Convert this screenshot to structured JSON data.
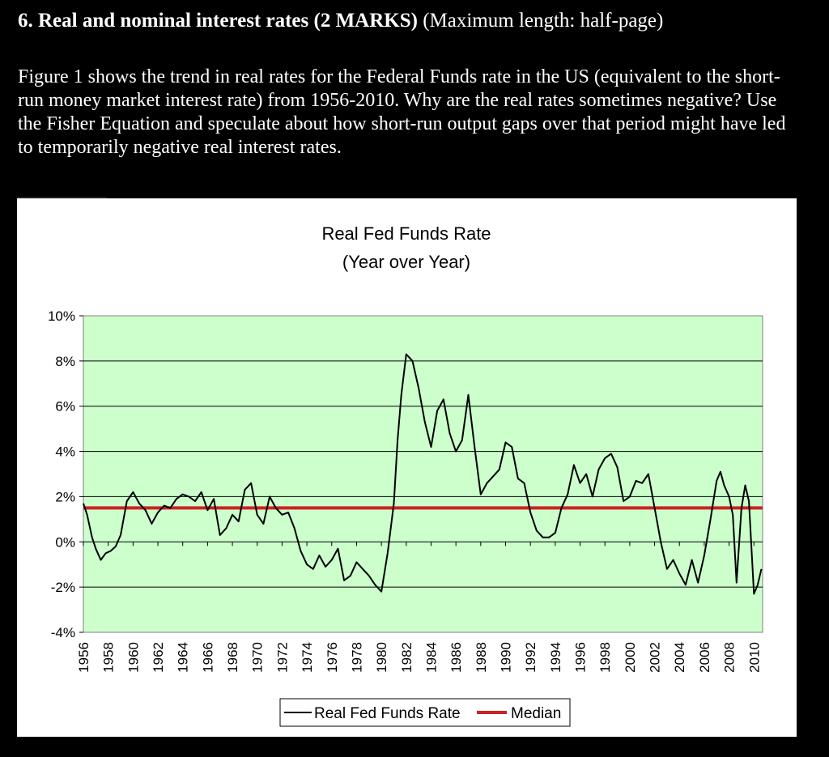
{
  "question": {
    "heading_bold": "6. Real and nominal interest rates (2 MARKS)",
    "heading_rest": " (Maximum length: half-page)",
    "body": "Figure 1 shows the trend in real rates for the Federal Funds rate in the US (equivalent to the short- run money market interest rate) from 1956-2010. Why are the real rates sometimes negative? Use the Fisher Equation and speculate about how short-run output gaps over that period might have led to temporarily negative real interest rates."
  },
  "colors": {
    "plot_background": "#ccffcc",
    "series_line": "#000000",
    "median_line": "#cc2222"
  },
  "chart_data": {
    "type": "line",
    "title": "Real Fed Funds Rate",
    "subtitle": "(Year over Year)",
    "xlabel": "",
    "ylabel": "",
    "ylim": [
      -4,
      10
    ],
    "xlim": [
      1956,
      2010.7
    ],
    "grid": "horizontal",
    "legend_position": "bottom-center",
    "y_ticks": [
      "10%",
      "8%",
      "6%",
      "4%",
      "2%",
      "0%",
      "-2%",
      "-4%"
    ],
    "y_tick_values": [
      10,
      8,
      6,
      4,
      2,
      0,
      -2,
      -4
    ],
    "x_ticks": [
      "1956",
      "1958",
      "1960",
      "1962",
      "1964",
      "1966",
      "1968",
      "1970",
      "1972",
      "1974",
      "1976",
      "1978",
      "1980",
      "1982",
      "1984",
      "1986",
      "1988",
      "1990",
      "1992",
      "1994",
      "1996",
      "1998",
      "2000",
      "2002",
      "2004",
      "2006",
      "2008",
      "2010"
    ],
    "series": [
      {
        "name": "Real Fed Funds Rate",
        "x": [
          1956,
          1956.3,
          1956.7,
          1957,
          1957.4,
          1957.8,
          1958.2,
          1958.6,
          1959,
          1959.5,
          1960,
          1960.5,
          1961,
          1961.5,
          1962,
          1962.5,
          1963,
          1963.5,
          1964,
          1964.5,
          1965,
          1965.5,
          1966,
          1966.5,
          1967,
          1967.5,
          1968,
          1968.5,
          1969,
          1969.5,
          1970,
          1970.5,
          1971,
          1971.5,
          1972,
          1972.5,
          1973,
          1973.5,
          1974,
          1974.5,
          1975,
          1975.5,
          1976,
          1976.5,
          1977,
          1977.5,
          1978,
          1978.5,
          1979,
          1979.5,
          1980,
          1980.5,
          1981,
          1981.3,
          1981.6,
          1982,
          1982.5,
          1983,
          1983.5,
          1984,
          1984.5,
          1985,
          1985.5,
          1986,
          1986.5,
          1987,
          1987.5,
          1988,
          1988.5,
          1989,
          1989.5,
          1990,
          1990.5,
          1991,
          1991.5,
          1992,
          1992.5,
          1993,
          1993.5,
          1994,
          1994.5,
          1995,
          1995.5,
          1996,
          1996.5,
          1997,
          1997.5,
          1998,
          1998.5,
          1999,
          1999.5,
          2000,
          2000.5,
          2001,
          2001.5,
          2002,
          2002.5,
          2003,
          2003.5,
          2004,
          2004.5,
          2005,
          2005.5,
          2006,
          2006.5,
          2007,
          2007.3,
          2007.6,
          2008,
          2008.3,
          2008.6,
          2009,
          2009.3,
          2009.6,
          2010,
          2010.3,
          2010.6
        ],
        "values": [
          1.7,
          1.2,
          0.2,
          -0.3,
          -0.8,
          -0.5,
          -0.4,
          -0.2,
          0.3,
          1.8,
          2.2,
          1.7,
          1.4,
          0.8,
          1.3,
          1.6,
          1.5,
          1.9,
          2.1,
          2.0,
          1.8,
          2.2,
          1.4,
          1.9,
          0.3,
          0.6,
          1.2,
          0.9,
          2.3,
          2.6,
          1.2,
          0.8,
          2.0,
          1.5,
          1.2,
          1.3,
          0.6,
          -0.4,
          -1.0,
          -1.2,
          -0.6,
          -1.1,
          -0.8,
          -0.3,
          -1.7,
          -1.5,
          -0.9,
          -1.2,
          -1.5,
          -1.9,
          -2.2,
          -0.5,
          1.7,
          4.5,
          6.5,
          8.3,
          8.0,
          6.8,
          5.3,
          4.2,
          5.8,
          6.3,
          4.8,
          4.0,
          4.5,
          6.5,
          4.2,
          2.1,
          2.6,
          2.9,
          3.2,
          4.4,
          4.2,
          2.8,
          2.6,
          1.3,
          0.5,
          0.2,
          0.2,
          0.4,
          1.5,
          2.1,
          3.4,
          2.6,
          3.0,
          2.0,
          3.2,
          3.7,
          3.9,
          3.3,
          1.8,
          2.0,
          2.7,
          2.6,
          3.0,
          1.5,
          0.0,
          -1.2,
          -0.8,
          -1.4,
          -1.9,
          -0.8,
          -1.8,
          -0.6,
          1.0,
          2.7,
          3.1,
          2.5,
          2.0,
          1.2,
          -1.8,
          1.5,
          2.5,
          1.8,
          -2.3,
          -1.9,
          -1.2
        ]
      },
      {
        "name": "Median",
        "value": 1.5
      }
    ],
    "legend": [
      "Real Fed Funds Rate",
      "Median"
    ]
  }
}
